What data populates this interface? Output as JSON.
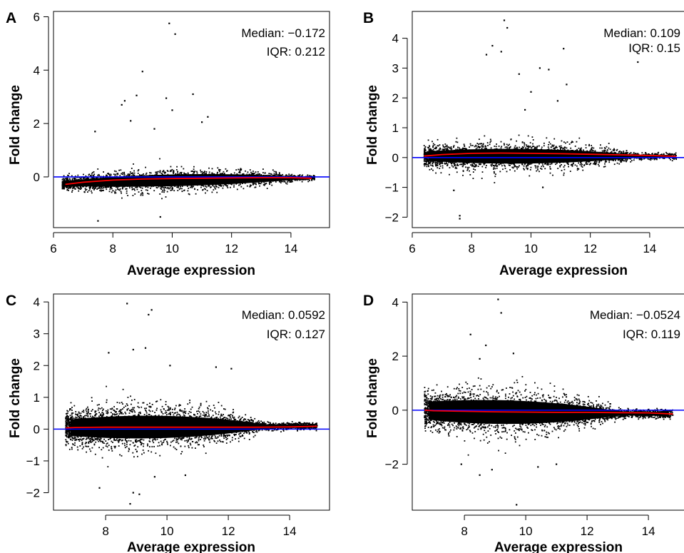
{
  "chart_data": [
    {
      "panel": "A",
      "type": "scatter",
      "xlabel": "Average expression",
      "ylabel": "Fold change",
      "xlim": [
        6,
        15.3
      ],
      "ylim": [
        -1.9,
        6.2
      ],
      "xticks": [
        6,
        8,
        10,
        12,
        14
      ],
      "yticks": [
        0,
        2,
        4,
        6
      ],
      "median_label": "Median: −0.172",
      "iqr_label": "IQR: 0.212",
      "reference_line": {
        "y": 0,
        "color": "#0000ff"
      },
      "loess_fit": {
        "color": "#ff0000",
        "x": [
          6.4,
          7,
          8,
          9,
          10,
          11,
          12,
          13,
          14,
          14.7
        ],
        "y": [
          -0.28,
          -0.2,
          -0.12,
          -0.08,
          -0.06,
          -0.05,
          -0.04,
          -0.03,
          -0.03,
          -0.05
        ]
      },
      "cloud": {
        "x_center": 10,
        "spread_center": 0.4,
        "spread_edge": 0.09,
        "offset_start": -0.28,
        "offset_end": -0.03,
        "x_start": 6.3,
        "x_end": 14.8,
        "point_count": 2300,
        "seed": 11
      },
      "outliers": [
        {
          "x": 9.9,
          "y": 5.75
        },
        {
          "x": 10.1,
          "y": 5.35
        },
        {
          "x": 9.0,
          "y": 3.95
        },
        {
          "x": 8.8,
          "y": 3.05
        },
        {
          "x": 8.4,
          "y": 2.85
        },
        {
          "x": 10.7,
          "y": 3.1
        },
        {
          "x": 9.8,
          "y": 2.95
        },
        {
          "x": 8.3,
          "y": 2.7
        },
        {
          "x": 11.2,
          "y": 2.25
        },
        {
          "x": 10.0,
          "y": 2.5
        },
        {
          "x": 7.5,
          "y": -1.65
        },
        {
          "x": 9.6,
          "y": -1.5
        },
        {
          "x": 8.6,
          "y": 2.1
        },
        {
          "x": 11.0,
          "y": 2.05
        },
        {
          "x": 7.4,
          "y": 1.7
        },
        {
          "x": 9.4,
          "y": 1.8
        }
      ],
      "color": "#000000"
    },
    {
      "panel": "B",
      "type": "scatter",
      "xlabel": "Average expression",
      "ylabel": "Fold change",
      "xlim": [
        6,
        15.3
      ],
      "ylim": [
        -2.35,
        4.9
      ],
      "xticks": [
        6,
        8,
        10,
        12,
        14
      ],
      "yticks": [
        -2,
        -1,
        0,
        1,
        2,
        3,
        4
      ],
      "median_label": "Median: 0.109",
      "iqr_label": "IQR: 0.15",
      "reference_line": {
        "y": 0,
        "color": "#0000ff"
      },
      "loess_fit": {
        "color": "#ff0000",
        "x": [
          6.4,
          7,
          8,
          9,
          10,
          11,
          12,
          13,
          14,
          14.9
        ],
        "y": [
          0.05,
          0.1,
          0.14,
          0.15,
          0.14,
          0.13,
          0.11,
          0.09,
          0.07,
          0.04
        ]
      },
      "cloud": {
        "x_center": 9.3,
        "spread_center": 0.45,
        "spread_edge": 0.09,
        "offset_start": 0.05,
        "offset_end": 0.04,
        "x_start": 6.4,
        "x_end": 14.9,
        "point_count": 2600,
        "seed": 23
      },
      "outliers": [
        {
          "x": 9.1,
          "y": 4.6
        },
        {
          "x": 9.2,
          "y": 4.35
        },
        {
          "x": 8.7,
          "y": 3.75
        },
        {
          "x": 9.0,
          "y": 3.55
        },
        {
          "x": 8.5,
          "y": 3.45
        },
        {
          "x": 11.1,
          "y": 3.65
        },
        {
          "x": 10.3,
          "y": 3.0
        },
        {
          "x": 10.6,
          "y": 2.95
        },
        {
          "x": 13.6,
          "y": 3.2
        },
        {
          "x": 9.6,
          "y": 2.8
        },
        {
          "x": 11.2,
          "y": 2.45
        },
        {
          "x": 10.0,
          "y": 2.2
        },
        {
          "x": 7.6,
          "y": -1.95
        },
        {
          "x": 7.6,
          "y": -2.05
        },
        {
          "x": 7.4,
          "y": -1.1
        },
        {
          "x": 10.4,
          "y": -1.0
        },
        {
          "x": 10.9,
          "y": 1.9
        },
        {
          "x": 9.8,
          "y": 1.6
        }
      ],
      "color": "#000000"
    },
    {
      "panel": "C",
      "type": "scatter",
      "xlabel": "Average expression",
      "ylabel": "Fold change",
      "xlim": [
        6.3,
        15.3
      ],
      "ylim": [
        -2.55,
        4.25
      ],
      "xticks": [
        8,
        10,
        12,
        14
      ],
      "yticks": [
        -2,
        -1,
        0,
        1,
        2,
        3,
        4
      ],
      "median_label": "Median: 0.0592",
      "iqr_label": "IQR: 0.127",
      "reference_line": {
        "y": 0,
        "color": "#0000ff"
      },
      "loess_fit": {
        "color": "#ff0000",
        "x": [
          6.7,
          7,
          8,
          9,
          10,
          11,
          12,
          13,
          14,
          14.9
        ],
        "y": [
          0.04,
          0.05,
          0.06,
          0.06,
          0.06,
          0.06,
          0.06,
          0.06,
          0.07,
          0.09
        ]
      },
      "cloud": {
        "x_center": 9.2,
        "spread_center": 0.65,
        "spread_edge": 0.1,
        "offset_start": 0.04,
        "offset_end": 0.09,
        "x_start": 6.7,
        "x_end": 14.9,
        "point_count": 3200,
        "seed": 37
      },
      "outliers": [
        {
          "x": 8.7,
          "y": 3.95
        },
        {
          "x": 9.5,
          "y": 3.75
        },
        {
          "x": 9.4,
          "y": 3.6
        },
        {
          "x": 8.9,
          "y": 2.5
        },
        {
          "x": 9.3,
          "y": 2.55
        },
        {
          "x": 8.1,
          "y": 2.4
        },
        {
          "x": 8.8,
          "y": -2.35
        },
        {
          "x": 8.9,
          "y": -2.0
        },
        {
          "x": 9.1,
          "y": -2.05
        },
        {
          "x": 7.8,
          "y": -1.85
        },
        {
          "x": 10.1,
          "y": 2.0
        },
        {
          "x": 11.6,
          "y": 1.95
        },
        {
          "x": 12.1,
          "y": 1.9
        },
        {
          "x": 9.6,
          "y": -1.5
        },
        {
          "x": 10.6,
          "y": -1.45
        }
      ],
      "color": "#000000"
    },
    {
      "panel": "D",
      "type": "scatter",
      "xlabel": "Average expression",
      "ylabel": "Fold change",
      "xlim": [
        6.3,
        15.3
      ],
      "ylim": [
        -3.7,
        4.3
      ],
      "xticks": [
        8,
        10,
        12,
        14
      ],
      "yticks": [
        -2,
        0,
        2,
        4
      ],
      "median_label": "Median: −0.0524",
      "iqr_label": "IQR: 0.119",
      "reference_line": {
        "y": 0,
        "color": "#0000ff"
      },
      "loess_fit": {
        "color": "#ff0000",
        "x": [
          6.7,
          7,
          8,
          9,
          10,
          11,
          12,
          13,
          14,
          14.8
        ],
        "y": [
          0.0,
          -0.02,
          -0.04,
          -0.06,
          -0.07,
          -0.08,
          -0.08,
          -0.09,
          -0.1,
          -0.14
        ]
      },
      "cloud": {
        "x_center": 9.0,
        "spread_center": 0.8,
        "spread_edge": 0.14,
        "offset_start": 0.0,
        "offset_end": -0.14,
        "x_start": 6.7,
        "x_end": 14.8,
        "point_count": 2800,
        "seed": 53
      },
      "outliers": [
        {
          "x": 9.1,
          "y": 4.1
        },
        {
          "x": 9.2,
          "y": 3.6
        },
        {
          "x": 8.2,
          "y": 2.8
        },
        {
          "x": 8.7,
          "y": 2.4
        },
        {
          "x": 9.6,
          "y": 2.1
        },
        {
          "x": 8.5,
          "y": 1.9
        },
        {
          "x": 9.7,
          "y": -3.5
        },
        {
          "x": 8.5,
          "y": -2.4
        },
        {
          "x": 8.9,
          "y": -2.2
        },
        {
          "x": 11.0,
          "y": -2.0
        },
        {
          "x": 7.9,
          "y": -2.0
        },
        {
          "x": 10.4,
          "y": -2.1
        }
      ],
      "color": "#000000"
    }
  ]
}
